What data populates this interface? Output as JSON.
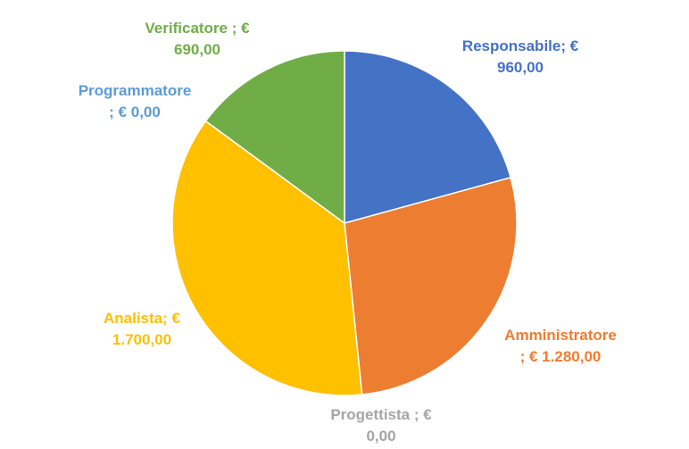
{
  "chart_data": {
    "type": "pie",
    "slices": [
      {
        "name": "Responsabile",
        "value": 960,
        "label_line1": "Responsabile; €",
        "label_line2": "960,00",
        "color": "#4472C4"
      },
      {
        "name": "Amministratore",
        "value": 1280,
        "label_line1": "Amministratore",
        "label_line2": "; € 1.280,00",
        "color": "#ED7D31"
      },
      {
        "name": "Progettista",
        "value": 0,
        "label_line1": "Progettista ; €",
        "label_line2": "0,00",
        "color": "#A5A5A5"
      },
      {
        "name": "Analista",
        "value": 1700,
        "label_line1": "Analista; €",
        "label_line2": "1.700,00",
        "color": "#FFC000"
      },
      {
        "name": "Programmatore",
        "value": 0,
        "label_line1": "Programmatore",
        "label_line2": "; € 0,00",
        "color": "#5B9BD5"
      },
      {
        "name": "Verificatore",
        "value": 690,
        "label_line1": "Verificatore ; €",
        "label_line2": "690,00",
        "color": "#70AD47"
      }
    ],
    "legend": "none"
  }
}
